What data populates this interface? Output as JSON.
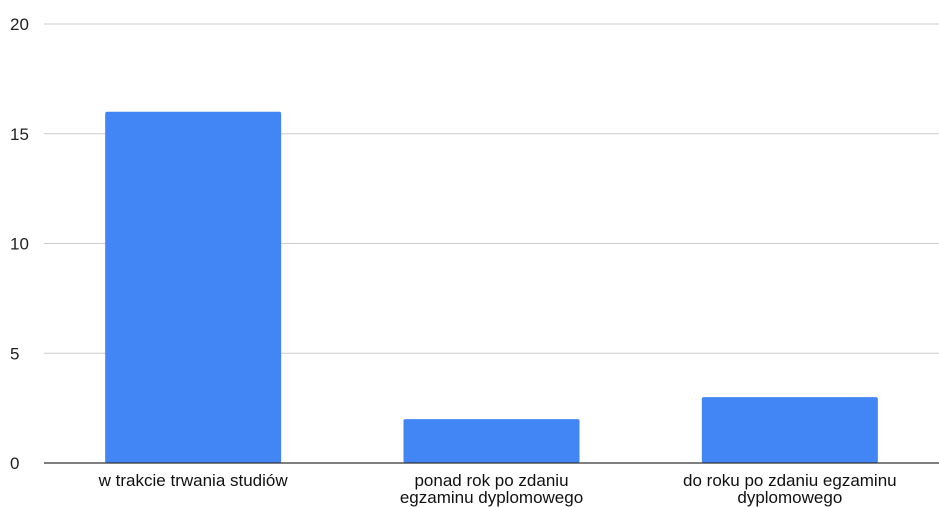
{
  "chart_data": {
    "type": "bar",
    "title": "",
    "xlabel": "",
    "ylabel": "",
    "categories": [
      [
        "w trakcie trwania studiów"
      ],
      [
        "ponad rok po zdaniu",
        "egzaminu dyplomowego"
      ],
      [
        "do roku po zdaniu egzaminu",
        "dyplomowego"
      ]
    ],
    "values": [
      16,
      2,
      3
    ],
    "ylim": [
      0,
      20
    ],
    "yticks": [
      "0",
      "5",
      "10",
      "15",
      "20"
    ],
    "grid": true,
    "bar_color": "#4285f4",
    "grid_color": "#cccccc",
    "axis_color": "#333333"
  }
}
